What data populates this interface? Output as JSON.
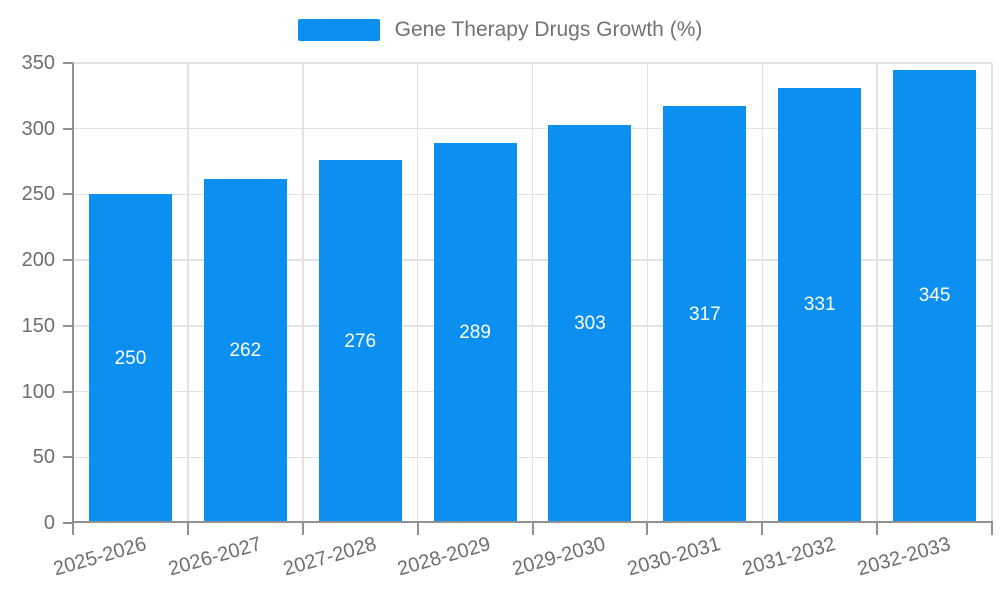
{
  "chart_data": {
    "type": "bar",
    "title": "",
    "series_name": "Gene Therapy Drugs Growth (%)",
    "categories": [
      "2025-2026",
      "2026-2027",
      "2027-2028",
      "2028-2029",
      "2029-2030",
      "2030-2031",
      "2031-2032",
      "2032-2033"
    ],
    "values": [
      250,
      262,
      276,
      289,
      303,
      317,
      331,
      345
    ],
    "xlabel": "",
    "ylabel": "",
    "ylim": [
      0,
      350
    ],
    "yticks": [
      0,
      50,
      100,
      150,
      200,
      250,
      300,
      350
    ],
    "grid": true,
    "legend_position": "top-center",
    "bar_label_position": "inside-center",
    "x_label_rotation_deg": -16,
    "colors": {
      "bar": "#0b90f2",
      "bar_label": "#ffffff",
      "axis": "#919191",
      "grid": "#e3e3e3",
      "tick_text": "#6e6e6e",
      "legend_text": "#737373",
      "background": "#ffffff"
    }
  }
}
